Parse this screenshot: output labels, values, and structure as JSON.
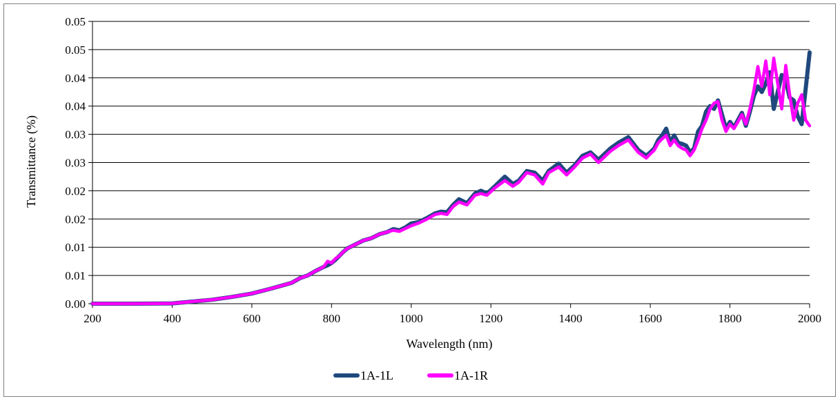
{
  "chart_data": {
    "type": "line",
    "xlabel": "Wavelength  (nm)",
    "ylabel": "Transmittance (%)",
    "xlim": [
      200,
      2000
    ],
    "ylim": [
      0,
      0.05
    ],
    "x_ticks": [
      200,
      400,
      600,
      800,
      1000,
      1200,
      1400,
      1600,
      1800,
      2000
    ],
    "x_tick_labels": [
      "200",
      "400",
      "600",
      "800",
      "1000",
      "1200",
      "1400",
      "1600",
      "1800",
      "2000"
    ],
    "y_ticks": [
      0,
      0.005,
      0.01,
      0.015,
      0.02,
      0.025,
      0.03,
      0.035,
      0.04,
      0.045,
      0.05
    ],
    "y_tick_labels": [
      "0.00",
      "0.01",
      "0.01",
      "0.02",
      "0.02",
      "0.03",
      "0.03",
      "0.04",
      "0.04",
      "0.05",
      "0.05"
    ],
    "grid": "horizontal",
    "legend_position": "bottom",
    "series": [
      {
        "name": "1A-1L",
        "color": "#1f497d",
        "x": [
          200,
          300,
          400,
          500,
          550,
          600,
          650,
          700,
          720,
          740,
          760,
          780,
          790,
          800,
          810,
          820,
          830,
          840,
          860,
          880,
          900,
          920,
          940,
          955,
          970,
          985,
          1000,
          1020,
          1040,
          1060,
          1075,
          1090,
          1105,
          1120,
          1140,
          1160,
          1175,
          1190,
          1210,
          1235,
          1255,
          1270,
          1290,
          1310,
          1330,
          1345,
          1370,
          1390,
          1410,
          1430,
          1450,
          1470,
          1500,
          1520,
          1545,
          1570,
          1590,
          1600,
          1610,
          1620,
          1630,
          1640,
          1650,
          1660,
          1670,
          1680,
          1690,
          1700,
          1710,
          1720,
          1730,
          1740,
          1750,
          1760,
          1770,
          1780,
          1790,
          1800,
          1810,
          1820,
          1830,
          1840,
          1850,
          1860,
          1870,
          1880,
          1890,
          1900,
          1910,
          1920,
          1930,
          1940,
          1950,
          1960,
          1970,
          1980,
          1990,
          2000
        ],
        "y": [
          0,
          0,
          5e-05,
          0.0007,
          0.0012,
          0.0018,
          0.0027,
          0.0037,
          0.0045,
          0.005,
          0.0058,
          0.0065,
          0.0068,
          0.0072,
          0.0078,
          0.0085,
          0.0092,
          0.0098,
          0.0105,
          0.0112,
          0.0116,
          0.0123,
          0.0127,
          0.0132,
          0.013,
          0.0135,
          0.0142,
          0.0145,
          0.0152,
          0.016,
          0.0163,
          0.0162,
          0.0175,
          0.0185,
          0.0178,
          0.0195,
          0.02,
          0.0195,
          0.0208,
          0.0225,
          0.0212,
          0.0218,
          0.0235,
          0.0232,
          0.0218,
          0.0235,
          0.0248,
          0.0232,
          0.0245,
          0.0262,
          0.0268,
          0.0255,
          0.0275,
          0.0285,
          0.0295,
          0.0272,
          0.0262,
          0.0268,
          0.0275,
          0.029,
          0.0298,
          0.031,
          0.0285,
          0.0298,
          0.0285,
          0.0283,
          0.028,
          0.0268,
          0.0275,
          0.0305,
          0.0315,
          0.034,
          0.035,
          0.0345,
          0.036,
          0.0335,
          0.031,
          0.0322,
          0.0312,
          0.0325,
          0.0338,
          0.0315,
          0.034,
          0.0368,
          0.0385,
          0.0375,
          0.039,
          0.041,
          0.0345,
          0.0375,
          0.0405,
          0.0395,
          0.0365,
          0.036,
          0.0332,
          0.0318,
          0.038,
          0.0445
        ]
      },
      {
        "name": "1A-1R",
        "color": "#ff00ff",
        "x": [
          200,
          300,
          400,
          500,
          550,
          600,
          650,
          700,
          720,
          740,
          760,
          780,
          790,
          800,
          810,
          820,
          830,
          840,
          860,
          880,
          900,
          920,
          940,
          955,
          970,
          985,
          1000,
          1020,
          1040,
          1060,
          1075,
          1090,
          1105,
          1120,
          1140,
          1160,
          1175,
          1190,
          1210,
          1235,
          1255,
          1270,
          1290,
          1310,
          1330,
          1345,
          1370,
          1390,
          1410,
          1430,
          1450,
          1470,
          1500,
          1520,
          1545,
          1570,
          1590,
          1600,
          1610,
          1620,
          1630,
          1640,
          1650,
          1660,
          1670,
          1680,
          1690,
          1700,
          1710,
          1720,
          1730,
          1740,
          1750,
          1760,
          1770,
          1780,
          1790,
          1800,
          1810,
          1820,
          1830,
          1840,
          1850,
          1860,
          1870,
          1880,
          1890,
          1900,
          1910,
          1920,
          1930,
          1940,
          1950,
          1960,
          1970,
          1980,
          1990,
          2000
        ],
        "y": [
          0,
          0,
          5e-05,
          0.0007,
          0.0012,
          0.0018,
          0.0027,
          0.0037,
          0.0045,
          0.005,
          0.0058,
          0.0065,
          0.0075,
          0.0072,
          0.008,
          0.0085,
          0.0092,
          0.0098,
          0.0105,
          0.0112,
          0.0116,
          0.0123,
          0.0127,
          0.013,
          0.0128,
          0.0133,
          0.0138,
          0.0143,
          0.015,
          0.0158,
          0.016,
          0.0158,
          0.0172,
          0.018,
          0.0175,
          0.0192,
          0.0195,
          0.0192,
          0.0205,
          0.0218,
          0.0208,
          0.0215,
          0.0232,
          0.0228,
          0.0212,
          0.0232,
          0.0242,
          0.0228,
          0.0242,
          0.0258,
          0.0265,
          0.025,
          0.027,
          0.028,
          0.029,
          0.0268,
          0.0258,
          0.0265,
          0.0272,
          0.0285,
          0.0292,
          0.0298,
          0.028,
          0.029,
          0.028,
          0.0275,
          0.0272,
          0.0262,
          0.0272,
          0.029,
          0.031,
          0.0325,
          0.0345,
          0.0355,
          0.0358,
          0.0325,
          0.0305,
          0.0318,
          0.031,
          0.0322,
          0.0335,
          0.0318,
          0.0345,
          0.0378,
          0.042,
          0.0385,
          0.043,
          0.037,
          0.0435,
          0.039,
          0.0345,
          0.0422,
          0.037,
          0.0325,
          0.0355,
          0.037,
          0.0325,
          0.0315
        ]
      }
    ]
  }
}
